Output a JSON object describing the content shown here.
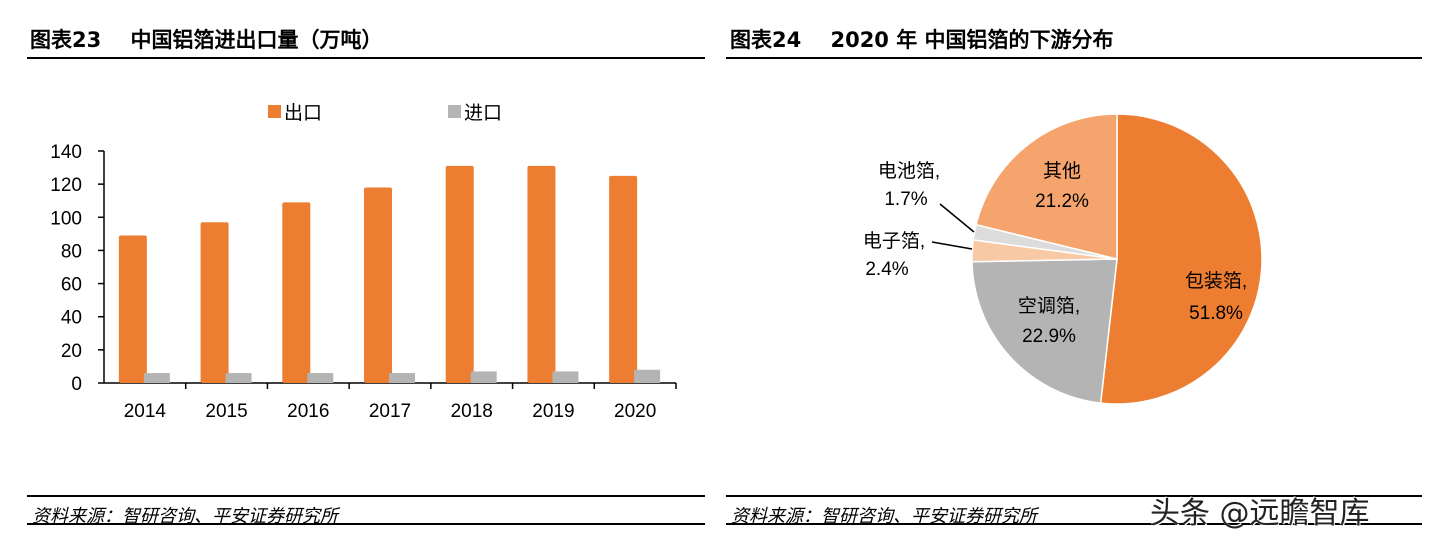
{
  "left": {
    "title": "图表23    中国铝箔进出口量（万吨）",
    "source": "资料来源：智研咨询、平安证券研究所"
  },
  "right": {
    "title": "图表24    2020 年 中国铝箔的下游分布",
    "source": "资料来源：智研咨询、平安证券研究所"
  },
  "watermark": "头条 @远瞻智库",
  "chart_data": [
    {
      "type": "bar",
      "title": "中国铝箔进出口量（万吨）",
      "categories": [
        "2014",
        "2015",
        "2016",
        "2017",
        "2018",
        "2019",
        "2020"
      ],
      "series": [
        {
          "name": "出口",
          "color": "#ED7D31",
          "values": [
            89,
            97,
            109,
            118,
            131,
            131,
            125
          ]
        },
        {
          "name": "进口",
          "color": "#B4B4B4",
          "values": [
            6,
            6,
            6,
            6,
            7,
            7,
            8
          ]
        }
      ],
      "ylim": [
        0,
        140
      ],
      "yticks": [
        0,
        20,
        40,
        60,
        80,
        100,
        120,
        140
      ],
      "grid": false,
      "legend": "top"
    },
    {
      "type": "pie",
      "title": "2020 年 中国铝箔的下游分布",
      "slices": [
        {
          "label": "包装箔,",
          "value": 51.8,
          "text": "51.8%",
          "color": "#ED7D31"
        },
        {
          "label": "空调箔,",
          "value": 22.9,
          "text": "22.9%",
          "color": "#B4B4B4"
        },
        {
          "label": "电子箔,",
          "value": 2.4,
          "text": "2.4%",
          "color": "#F8C9A4"
        },
        {
          "label": "电池箔,",
          "value": 1.7,
          "text": "1.7%",
          "color": "#DCDCDC"
        },
        {
          "label": "其他",
          "value": 21.2,
          "text": "21.2%",
          "color": "#F4A46C"
        }
      ]
    }
  ]
}
